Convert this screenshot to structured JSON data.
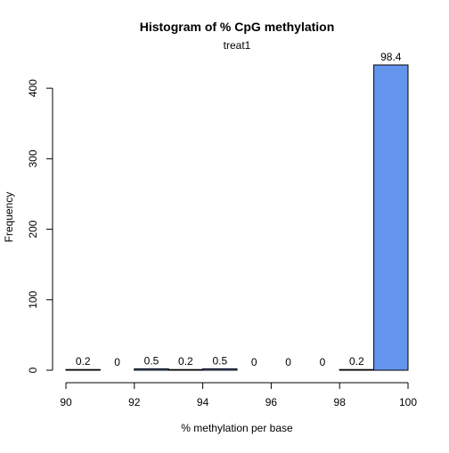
{
  "chart_data": {
    "type": "bar",
    "title": "Histogram of % CpG methylation",
    "subtitle": "treat1",
    "xlabel": "% methylation per base",
    "ylabel": "Frequency",
    "bin_edges": [
      90,
      91,
      92,
      93,
      94,
      95,
      96,
      97,
      98,
      99,
      100
    ],
    "counts": [
      1,
      0,
      2,
      1,
      2,
      0,
      0,
      0,
      1,
      433
    ],
    "bar_labels": [
      "0.2",
      "0",
      "0.5",
      "0.2",
      "0.5",
      "0",
      "0",
      "0",
      "0.2",
      "98.4"
    ],
    "xlim": [
      90,
      100
    ],
    "ylim": [
      0,
      433
    ],
    "x_ticks": [
      90,
      92,
      94,
      96,
      98,
      100
    ],
    "y_ticks": [
      0,
      100,
      200,
      300,
      400
    ],
    "bar_color": "#6495ED",
    "grid": false
  }
}
